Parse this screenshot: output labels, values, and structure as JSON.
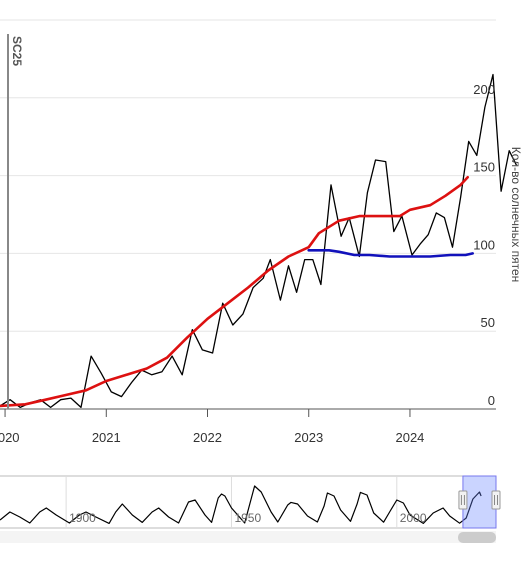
{
  "chart_data": [
    {
      "type": "line",
      "title": "",
      "xlabel": "",
      "ylabel": "Кол-во солнечных пятен",
      "xlim": [
        2019.95,
        2024.85
      ],
      "ylim": [
        0,
        250
      ],
      "x_ticks": [
        {
          "value": 2020,
          "label": "2020"
        },
        {
          "value": 2021,
          "label": "2021"
        },
        {
          "value": 2022,
          "label": "2022"
        },
        {
          "value": 2023,
          "label": "2023"
        },
        {
          "value": 2024,
          "label": "2024"
        }
      ],
      "y_ticks": [
        {
          "value": 0,
          "label": "0"
        },
        {
          "value": 50,
          "label": "50"
        },
        {
          "value": 100,
          "label": "100"
        },
        {
          "value": 150,
          "label": "150"
        },
        {
          "value": 200,
          "label": "200"
        }
      ],
      "grid": "horizontal",
      "cycle_marker": {
        "x": 2019.95,
        "label": "SC25"
      },
      "series": [
        {
          "color": "#000000",
          "points": [
            [
              2019.95,
              2
            ],
            [
              2020.05,
              6
            ],
            [
              2020.15,
              1
            ],
            [
              2020.25,
              4
            ],
            [
              2020.35,
              6
            ],
            [
              2020.45,
              1
            ],
            [
              2020.55,
              6
            ],
            [
              2020.65,
              7
            ],
            [
              2020.75,
              1
            ],
            [
              2020.85,
              34
            ],
            [
              2020.95,
              23
            ],
            [
              2021.05,
              11
            ],
            [
              2021.15,
              8
            ],
            [
              2021.25,
              17
            ],
            [
              2021.35,
              25
            ],
            [
              2021.45,
              22
            ],
            [
              2021.55,
              24
            ],
            [
              2021.65,
              34
            ],
            [
              2021.75,
              22
            ],
            [
              2021.85,
              51
            ],
            [
              2021.95,
              38
            ],
            [
              2022.05,
              36
            ],
            [
              2022.15,
              68
            ],
            [
              2022.25,
              54
            ],
            [
              2022.35,
              61
            ],
            [
              2022.45,
              78
            ],
            [
              2022.55,
              84
            ],
            [
              2022.62,
              96
            ],
            [
              2022.72,
              70
            ],
            [
              2022.8,
              92
            ],
            [
              2022.88,
              75
            ],
            [
              2022.96,
              96
            ],
            [
              2023.04,
              96
            ],
            [
              2023.12,
              80
            ],
            [
              2023.22,
              144
            ],
            [
              2023.32,
              111
            ],
            [
              2023.4,
              123
            ],
            [
              2023.5,
              98
            ],
            [
              2023.58,
              139
            ],
            [
              2023.66,
              160
            ],
            [
              2023.76,
              159
            ],
            [
              2023.84,
              114
            ],
            [
              2023.92,
              124
            ],
            [
              2024.02,
              99
            ],
            [
              2024.1,
              106
            ],
            [
              2024.18,
              112
            ],
            [
              2024.26,
              126
            ],
            [
              2024.34,
              123
            ],
            [
              2024.42,
              104
            ],
            [
              2024.5,
              136
            ],
            [
              2024.58,
              172
            ],
            [
              2024.66,
              163
            ],
            [
              2024.74,
              194
            ],
            [
              2024.82,
              215
            ],
            [
              2024.9,
              140
            ],
            [
              2024.98,
              166
            ],
            [
              2025.05,
              157
            ]
          ]
        },
        {
          "color": "#dd1111",
          "points": [
            [
              2019.95,
              2
            ],
            [
              2020.2,
              3
            ],
            [
              2020.4,
              6
            ],
            [
              2020.6,
              9
            ],
            [
              2020.8,
              12
            ],
            [
              2021.0,
              18
            ],
            [
              2021.2,
              22
            ],
            [
              2021.4,
              26
            ],
            [
              2021.6,
              33
            ],
            [
              2021.8,
              46
            ],
            [
              2022.0,
              58
            ],
            [
              2022.2,
              68
            ],
            [
              2022.4,
              78
            ],
            [
              2022.6,
              89
            ],
            [
              2022.8,
              98
            ],
            [
              2023.0,
              104
            ],
            [
              2023.1,
              113
            ],
            [
              2023.3,
              121
            ],
            [
              2023.5,
              124
            ],
            [
              2023.7,
              124
            ],
            [
              2023.9,
              124
            ],
            [
              2024.0,
              128
            ],
            [
              2024.2,
              131
            ],
            [
              2024.35,
              137
            ],
            [
              2024.5,
              144
            ],
            [
              2024.57,
              149
            ]
          ]
        },
        {
          "color": "#1111bb",
          "points": [
            [
              2023.0,
              102
            ],
            [
              2023.2,
              102
            ],
            [
              2023.3,
              101
            ],
            [
              2023.45,
              99
            ],
            [
              2023.6,
              99
            ],
            [
              2023.8,
              98
            ],
            [
              2024.0,
              98
            ],
            [
              2024.2,
              98
            ],
            [
              2024.4,
              99
            ],
            [
              2024.55,
              99
            ],
            [
              2024.62,
              100
            ]
          ]
        }
      ]
    },
    {
      "type": "area",
      "role": "range-navigator",
      "xlim": [
        1880,
        2030
      ],
      "x_ticks": [
        {
          "value": 1900,
          "label": "1900"
        },
        {
          "value": 1950,
          "label": "1950"
        },
        {
          "value": 2000,
          "label": "2000"
        }
      ],
      "selected_range": [
        2020,
        2030
      ],
      "series": [
        {
          "color": "#000000",
          "points": [
            [
              1880,
              20
            ],
            [
              1883,
              60
            ],
            [
              1886,
              35
            ],
            [
              1889,
              5
            ],
            [
              1892,
              60
            ],
            [
              1894,
              80
            ],
            [
              1897,
              45
            ],
            [
              1901,
              5
            ],
            [
              1904,
              45
            ],
            [
              1906,
              60
            ],
            [
              1909,
              35
            ],
            [
              1913,
              3
            ],
            [
              1915,
              60
            ],
            [
              1917,
              100
            ],
            [
              1920,
              45
            ],
            [
              1923,
              8
            ],
            [
              1926,
              60
            ],
            [
              1928,
              80
            ],
            [
              1931,
              35
            ],
            [
              1934,
              5
            ],
            [
              1937,
              110
            ],
            [
              1939,
              120
            ],
            [
              1942,
              45
            ],
            [
              1944,
              8
            ],
            [
              1946,
              130
            ],
            [
              1947,
              150
            ],
            [
              1948,
              140
            ],
            [
              1950,
              80
            ],
            [
              1954,
              5
            ],
            [
              1957,
              190
            ],
            [
              1959,
              160
            ],
            [
              1962,
              60
            ],
            [
              1964,
              10
            ],
            [
              1967,
              95
            ],
            [
              1968,
              108
            ],
            [
              1970,
              100
            ],
            [
              1973,
              40
            ],
            [
              1976,
              10
            ],
            [
              1978,
              90
            ],
            [
              1979,
              155
            ],
            [
              1981,
              140
            ],
            [
              1983,
              70
            ],
            [
              1986,
              13
            ],
            [
              1988,
              100
            ],
            [
              1989,
              158
            ],
            [
              1991,
              145
            ],
            [
              1993,
              55
            ],
            [
              1996,
              9
            ],
            [
              1998,
              65
            ],
            [
              2000,
              120
            ],
            [
              2002,
              105
            ],
            [
              2004,
              45
            ],
            [
              2008,
              3
            ],
            [
              2011,
              55
            ],
            [
              2014,
              80
            ],
            [
              2016,
              40
            ],
            [
              2019,
              4
            ],
            [
              2021,
              30
            ],
            [
              2023,
              125
            ],
            [
              2025,
              160
            ],
            [
              2025.5,
              140
            ]
          ]
        }
      ]
    }
  ]
}
